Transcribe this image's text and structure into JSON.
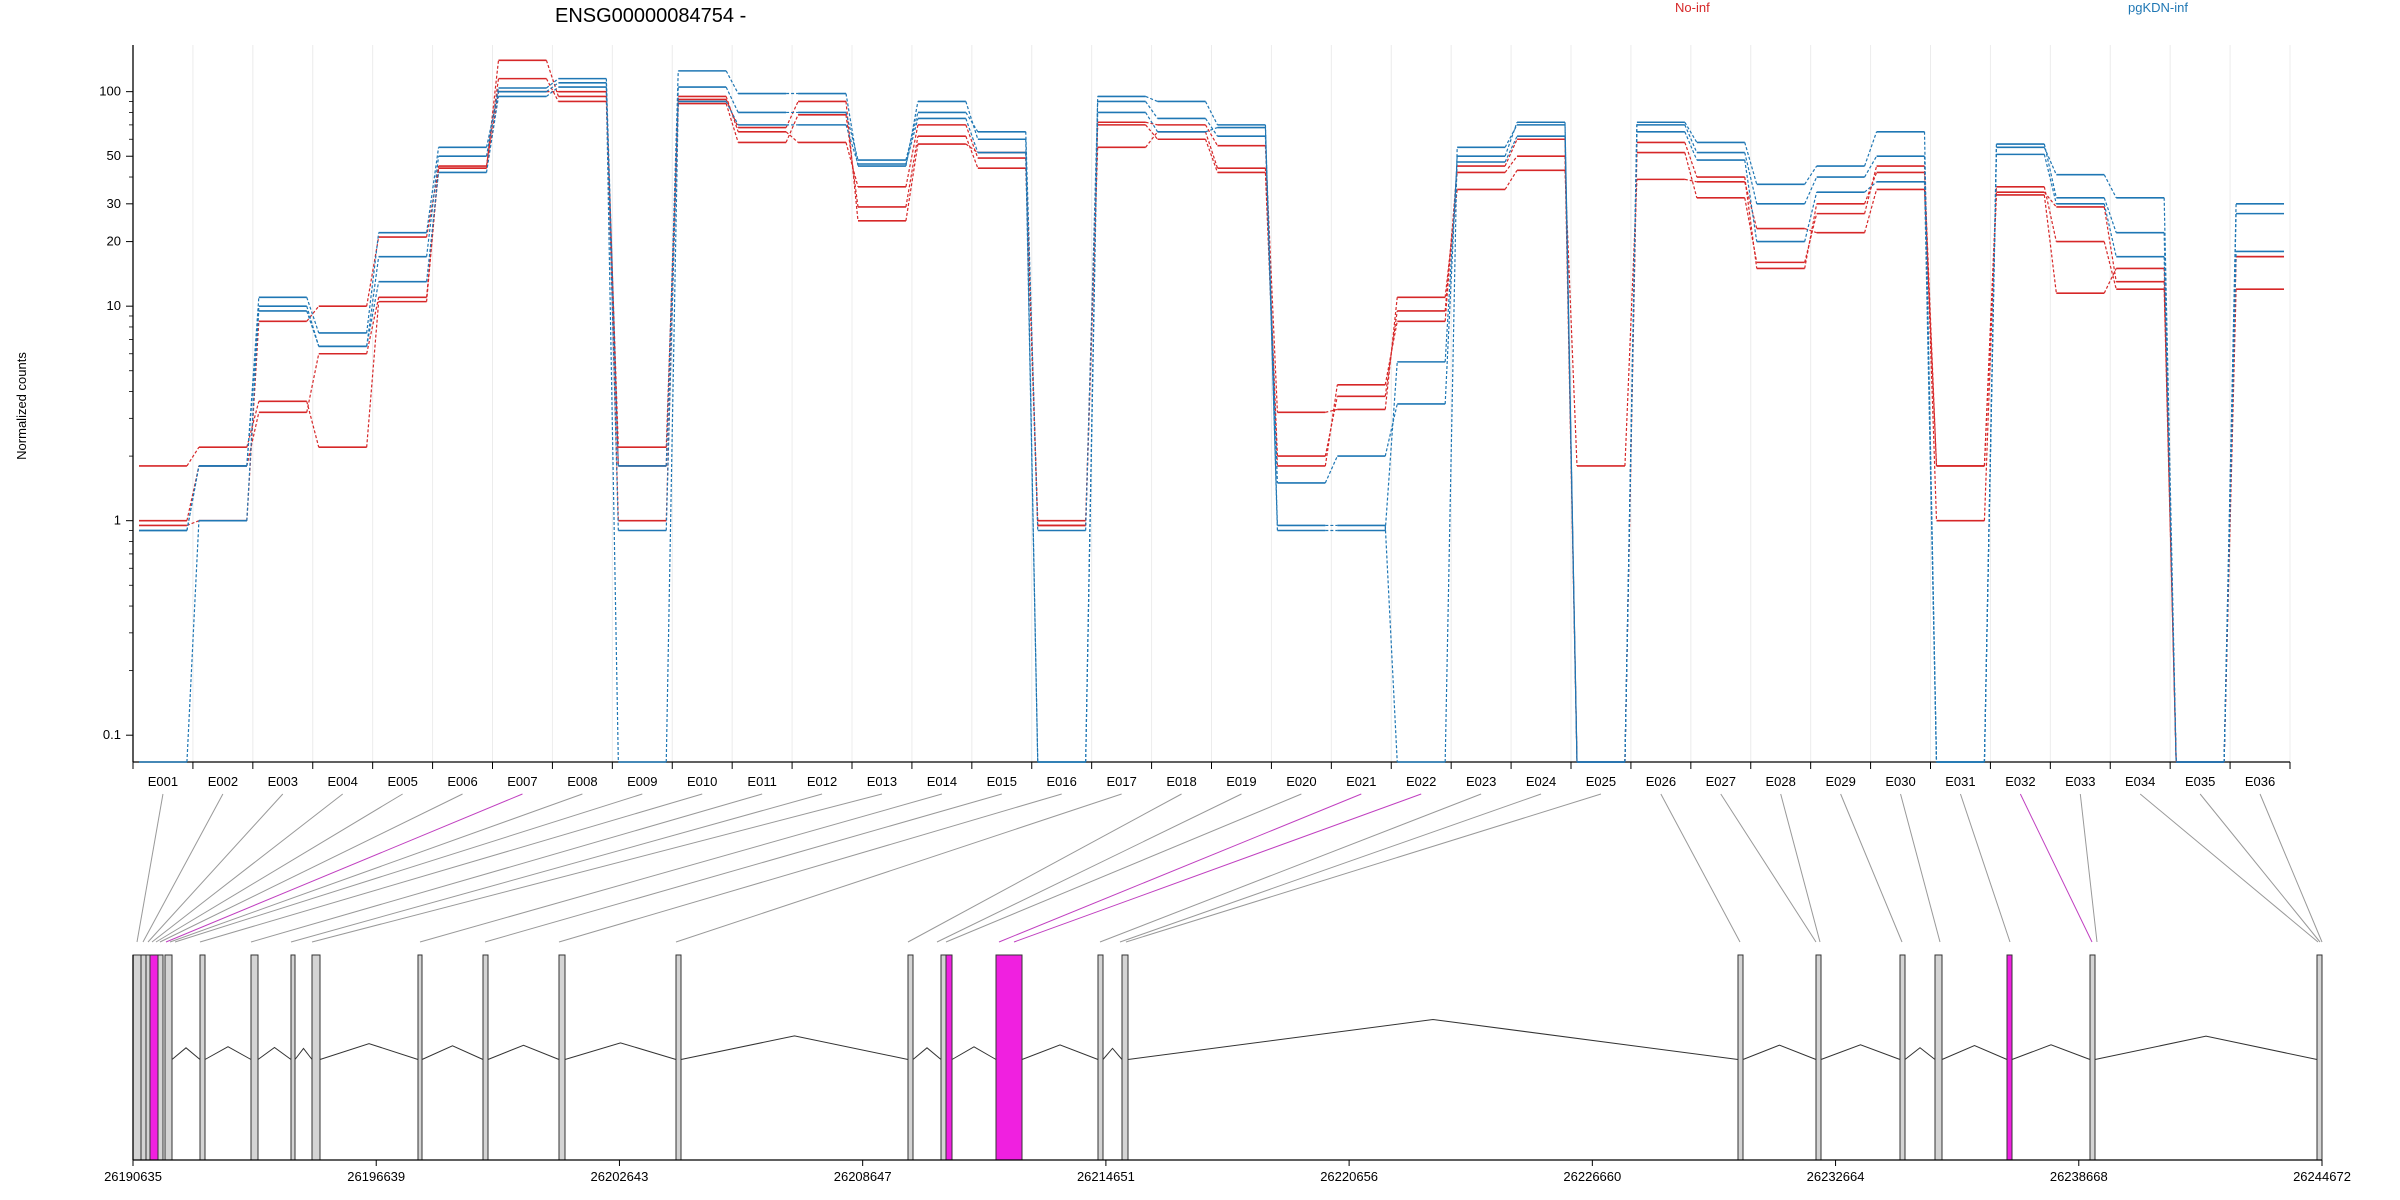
{
  "chart_data": {
    "type": "line",
    "title": "ENSG00000084754 -",
    "ylabel": "Normalized counts",
    "yscale": "log",
    "ylim": [
      0.075,
      165
    ],
    "yticks": [
      0.1,
      1,
      10,
      20,
      30,
      50,
      100
    ],
    "ytick_labels": [
      "0.1",
      "1",
      "10",
      "20",
      "30",
      "50",
      "100"
    ],
    "grid": "vertical",
    "legend": "top",
    "categories": [
      "E001",
      "E002",
      "E003",
      "E004",
      "E005",
      "E006",
      "E007",
      "E008",
      "E009",
      "E010",
      "E011",
      "E012",
      "E013",
      "E014",
      "E015",
      "E016",
      "E017",
      "E018",
      "E019",
      "E020",
      "E021",
      "E022",
      "E023",
      "E024",
      "E025",
      "E026",
      "E027",
      "E028",
      "E029",
      "E030",
      "E031",
      "E032",
      "E033",
      "E034",
      "E035",
      "E036"
    ],
    "groups": [
      {
        "name": "No-inf",
        "color": "#d62728"
      },
      {
        "name": "pgKDN-inf",
        "color": "#1f77b4"
      }
    ],
    "series": [
      {
        "group": "No-inf",
        "values": [
          1.8,
          2.2,
          3.6,
          2.2,
          10.5,
          44,
          140,
          95,
          2.2,
          92,
          68,
          90,
          25,
          57,
          52,
          1.0,
          72,
          70,
          56,
          3.2,
          3.3,
          11,
          35,
          43,
          1.8,
          39,
          38,
          23,
          22,
          35,
          1.8,
          36,
          20,
          12,
          0.075,
          12
        ]
      },
      {
        "group": "No-inf",
        "values": [
          1.0,
          1.8,
          3.2,
          6.0,
          11,
          45,
          115,
          90,
          1.8,
          88,
          58,
          78,
          29,
          62,
          44,
          0.95,
          55,
          65,
          44,
          2.0,
          3.8,
          9.5,
          42,
          50,
          0.075,
          52,
          32,
          16,
          27,
          45,
          1.0,
          34,
          29,
          13,
          0.075,
          17
        ]
      },
      {
        "group": "No-inf",
        "values": [
          0.95,
          1.0,
          8.5,
          10,
          21,
          44,
          100,
          100,
          1.0,
          95,
          65,
          58,
          36,
          70,
          49,
          0.95,
          70,
          60,
          42,
          1.8,
          4.3,
          8.5,
          45,
          60,
          0.075,
          58,
          40,
          15,
          30,
          42,
          1.8,
          33,
          11.5,
          15,
          0.075,
          17
        ]
      },
      {
        "group": "pgKDN-inf",
        "values": [
          0.075,
          1.0,
          10,
          6.5,
          17,
          50,
          104,
          115,
          1.8,
          125,
          98,
          98,
          45,
          90,
          60,
          0.075,
          95,
          90,
          70,
          0.95,
          0.95,
          0.075,
          55,
          70,
          0.075,
          72,
          58,
          37,
          45,
          65,
          0.075,
          55,
          41,
          32,
          0.075,
          30
        ]
      },
      {
        "group": "pgKDN-inf",
        "values": [
          0.9,
          1.8,
          11,
          7.5,
          22,
          55,
          100,
          110,
          0.9,
          105,
          80,
          80,
          48,
          80,
          65,
          0.9,
          90,
          75,
          62,
          1.5,
          2.0,
          3.5,
          50,
          72,
          0.075,
          70,
          52,
          30,
          40,
          50,
          0.075,
          57,
          32,
          22,
          0.075,
          27
        ]
      },
      {
        "group": "pgKDN-inf",
        "values": [
          0.9,
          1.8,
          9.5,
          6.5,
          13,
          42,
          95,
          105,
          0.075,
          90,
          70,
          70,
          46,
          75,
          52,
          0.075,
          80,
          65,
          68,
          0.9,
          0.9,
          5.5,
          47,
          62,
          0.075,
          65,
          48,
          20,
          34,
          38,
          0.075,
          51,
          30,
          17,
          0.075,
          18
        ]
      }
    ],
    "gene_model": {
      "coordinate_ticks": [
        "26190635",
        "26196639",
        "26202643",
        "26208647",
        "26214651",
        "26220656",
        "26226660",
        "26232664",
        "26238668",
        "26244672"
      ],
      "highlight_color": "#f020e0"
    }
  }
}
